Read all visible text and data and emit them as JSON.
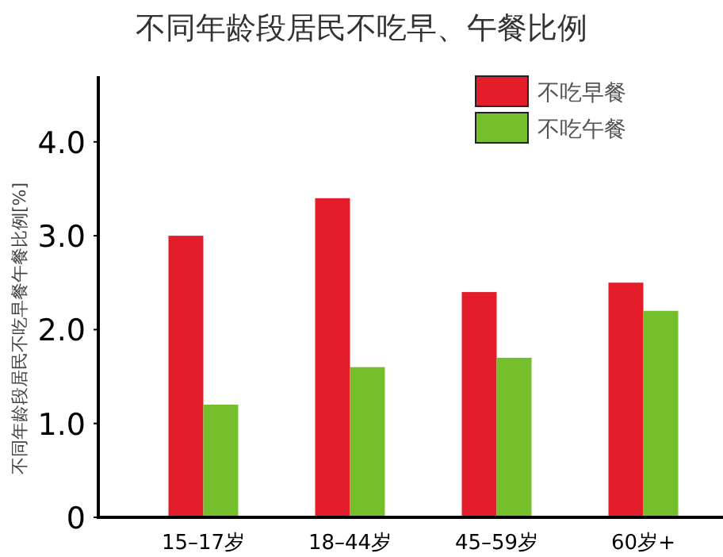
{
  "chart_data": {
    "type": "bar",
    "title": "不同年龄段居民不吃早、午餐比例",
    "ylabel": "不同年龄段居民不吃早餐午餐比例[%]",
    "categories": [
      "15–17岁",
      "18–44岁",
      "45–59岁",
      "60岁+"
    ],
    "series": [
      {
        "name": "不吃早餐",
        "color": "#e31e2a",
        "values": [
          3.0,
          3.4,
          2.4,
          2.5
        ]
      },
      {
        "name": "不吃午餐",
        "color": "#76bf2c",
        "values": [
          1.2,
          1.6,
          1.7,
          2.2
        ]
      }
    ],
    "ylim": [
      0,
      4.7
    ],
    "yticks": [
      0,
      {
        "value": 1,
        "label": "1.0"
      },
      {
        "value": 2,
        "label": "2.0"
      },
      {
        "value": 3,
        "label": "3.0"
      },
      {
        "value": 4,
        "label": "4.0"
      }
    ],
    "legend": "top right"
  }
}
